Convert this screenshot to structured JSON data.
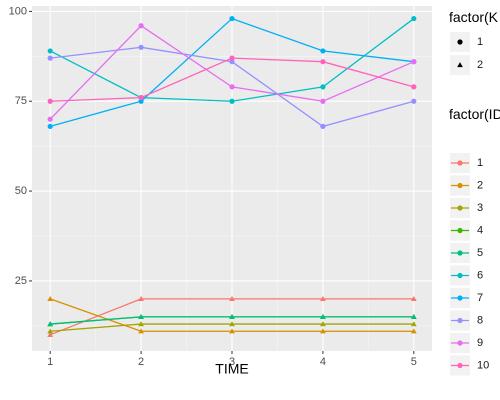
{
  "chart_data": {
    "type": "line",
    "xlabel": "TIME",
    "ylabel": "",
    "x": [
      1,
      2,
      3,
      4,
      5
    ],
    "x_ticks": [
      "1",
      "2",
      "3",
      "4",
      "5"
    ],
    "xlim": [
      0.8,
      5.2
    ],
    "ylim": [
      5.5,
      101.5
    ],
    "y_ticks": [
      "25",
      "50",
      "75",
      "100"
    ],
    "grid": true,
    "legend_position": "right",
    "legend_shape_title": "factor(K",
    "legend_shape_entries": [
      {
        "label": "1",
        "shape": "circle"
      },
      {
        "label": "2",
        "shape": "triangle"
      }
    ],
    "legend_color_title": "factor(ID",
    "series": [
      {
        "name": "1",
        "color": "#F8766D",
        "shape": "triangle",
        "values": [
          10,
          20,
          20,
          20,
          20
        ]
      },
      {
        "name": "2",
        "color": "#D89000",
        "shape": "triangle",
        "values": [
          20,
          11,
          11,
          11,
          11
        ]
      },
      {
        "name": "3",
        "color": "#A3A500",
        "shape": "triangle",
        "values": [
          11,
          13,
          13,
          13,
          13
        ]
      },
      {
        "name": "4",
        "color": "#39B600",
        "shape": "triangle",
        "values": [
          13,
          15,
          15,
          15,
          15
        ]
      },
      {
        "name": "5",
        "color": "#00BF7D",
        "shape": "triangle",
        "values": [
          13,
          15,
          15,
          15,
          15
        ]
      },
      {
        "name": "6",
        "color": "#00BFC4",
        "shape": "circle",
        "values": [
          89,
          76,
          75,
          79,
          98
        ]
      },
      {
        "name": "7",
        "color": "#00B0F6",
        "shape": "circle",
        "values": [
          68,
          75,
          98,
          89,
          86
        ]
      },
      {
        "name": "8",
        "color": "#9590FF",
        "shape": "circle",
        "values": [
          87,
          90,
          86,
          68,
          75
        ]
      },
      {
        "name": "9",
        "color": "#E76BF3",
        "shape": "circle",
        "values": [
          70,
          96,
          79,
          75,
          86
        ]
      },
      {
        "name": "10",
        "color": "#FF62BC",
        "shape": "circle",
        "values": [
          75,
          76,
          87,
          86,
          79
        ]
      }
    ]
  }
}
